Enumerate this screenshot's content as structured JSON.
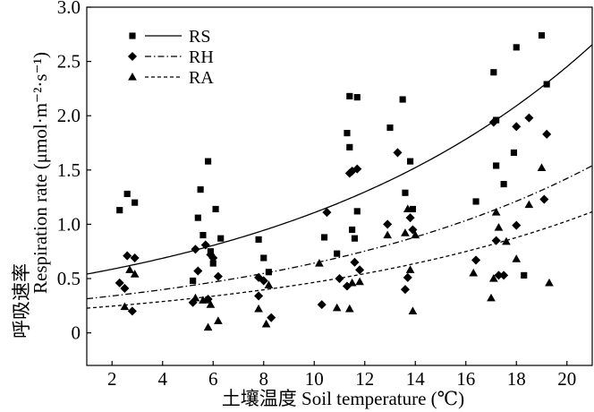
{
  "chart_data": {
    "type": "scatter",
    "title": "",
    "xlabel": "土壤温度 Soil temperature (℃)",
    "ylabel": "呼吸速率",
    "ylabel_en": "Respiration rate (μmol·m⁻²·s⁻¹)",
    "xlim": [
      1,
      21
    ],
    "ylim": [
      -0.3,
      3.0
    ],
    "xticks": [
      "2",
      "4",
      "6",
      "8",
      "10",
      "12",
      "14",
      "16",
      "18",
      "20"
    ],
    "yticks": [
      "0",
      "0.5",
      "1.0",
      "1.5",
      "2.0",
      "2.5",
      "3.0"
    ],
    "grid": false,
    "legend_position": "top-left",
    "series": [
      {
        "name": "RS",
        "marker": "square",
        "line_style": "solid",
        "fit": {
          "a": 0.5,
          "b": 0.0795
        },
        "points": [
          [
            2.3,
            1.13
          ],
          [
            2.6,
            1.28
          ],
          [
            2.9,
            1.2
          ],
          [
            5.2,
            0.48
          ],
          [
            5.4,
            1.06
          ],
          [
            5.5,
            1.32
          ],
          [
            5.6,
            0.9
          ],
          [
            5.8,
            1.58
          ],
          [
            5.9,
            0.75
          ],
          [
            6.0,
            0.64
          ],
          [
            6.1,
            1.14
          ],
          [
            6.3,
            0.87
          ],
          [
            7.8,
            0.86
          ],
          [
            8.0,
            0.69
          ],
          [
            8.2,
            0.56
          ],
          [
            10.4,
            0.88
          ],
          [
            10.9,
            0.73
          ],
          [
            11.3,
            1.84
          ],
          [
            11.4,
            1.71
          ],
          [
            11.4,
            2.18
          ],
          [
            11.5,
            0.95
          ],
          [
            11.6,
            0.87
          ],
          [
            11.7,
            2.17
          ],
          [
            11.7,
            1.12
          ],
          [
            13.0,
            1.89
          ],
          [
            13.5,
            2.15
          ],
          [
            13.6,
            1.29
          ],
          [
            13.8,
            1.58
          ],
          [
            13.9,
            1.14
          ],
          [
            16.4,
            1.21
          ],
          [
            17.1,
            2.4
          ],
          [
            17.2,
            1.96
          ],
          [
            17.2,
            1.54
          ],
          [
            17.5,
            1.37
          ],
          [
            17.9,
            1.66
          ],
          [
            18.0,
            2.63
          ],
          [
            18.3,
            0.53
          ],
          [
            19.0,
            2.74
          ],
          [
            19.2,
            2.29
          ]
        ]
      },
      {
        "name": "RH",
        "marker": "diamond",
        "line_style": "dash-dot",
        "fit": {
          "a": 0.29,
          "b": 0.0795
        },
        "points": [
          [
            2.3,
            0.46
          ],
          [
            2.5,
            0.41
          ],
          [
            2.6,
            0.71
          ],
          [
            2.8,
            0.2
          ],
          [
            2.9,
            0.69
          ],
          [
            5.2,
            0.28
          ],
          [
            5.3,
            0.77
          ],
          [
            5.4,
            0.57
          ],
          [
            5.7,
            0.81
          ],
          [
            5.8,
            0.31
          ],
          [
            5.9,
            0.72
          ],
          [
            6.0,
            0.69
          ],
          [
            6.2,
            0.52
          ],
          [
            7.8,
            0.51
          ],
          [
            7.8,
            0.34
          ],
          [
            8.0,
            0.48
          ],
          [
            8.3,
            0.14
          ],
          [
            10.3,
            0.26
          ],
          [
            10.5,
            1.11
          ],
          [
            11.0,
            0.5
          ],
          [
            11.3,
            0.43
          ],
          [
            11.4,
            1.47
          ],
          [
            11.5,
            1.49
          ],
          [
            11.6,
            0.65
          ],
          [
            11.7,
            1.51
          ],
          [
            11.8,
            0.58
          ],
          [
            12.9,
            1.0
          ],
          [
            13.3,
            1.66
          ],
          [
            13.6,
            0.4
          ],
          [
            13.7,
            0.51
          ],
          [
            13.8,
            1.06
          ],
          [
            13.9,
            0.95
          ],
          [
            16.4,
            0.67
          ],
          [
            17.1,
            1.94
          ],
          [
            17.2,
            0.85
          ],
          [
            17.3,
            0.53
          ],
          [
            17.5,
            0.53
          ],
          [
            18.0,
            0.99
          ],
          [
            18.0,
            1.9
          ],
          [
            18.5,
            1.98
          ],
          [
            19.1,
            1.23
          ],
          [
            19.2,
            1.83
          ]
        ]
      },
      {
        "name": "RA",
        "marker": "triangle",
        "line_style": "dashed",
        "fit": {
          "a": 0.21,
          "b": 0.0795
        },
        "points": [
          [
            2.5,
            0.24
          ],
          [
            2.7,
            0.58
          ],
          [
            2.9,
            0.54
          ],
          [
            5.3,
            0.32
          ],
          [
            5.6,
            0.3
          ],
          [
            5.8,
            0.05
          ],
          [
            5.9,
            0.26
          ],
          [
            6.2,
            0.11
          ],
          [
            7.8,
            0.22
          ],
          [
            8.1,
            0.08
          ],
          [
            8.2,
            0.44
          ],
          [
            10.2,
            0.64
          ],
          [
            10.9,
            0.23
          ],
          [
            11.4,
            0.22
          ],
          [
            11.5,
            0.46
          ],
          [
            11.8,
            0.47
          ],
          [
            12.9,
            0.9
          ],
          [
            13.6,
            0.92
          ],
          [
            13.7,
            1.14
          ],
          [
            13.8,
            0.58
          ],
          [
            13.9,
            0.2
          ],
          [
            14.0,
            0.9
          ],
          [
            16.3,
            0.55
          ],
          [
            17.0,
            0.32
          ],
          [
            17.1,
            0.5
          ],
          [
            17.2,
            1.11
          ],
          [
            17.3,
            0.97
          ],
          [
            17.6,
            0.84
          ],
          [
            18.0,
            0.68
          ],
          [
            18.5,
            1.18
          ],
          [
            19.0,
            1.52
          ],
          [
            19.3,
            0.46
          ]
        ]
      }
    ]
  }
}
